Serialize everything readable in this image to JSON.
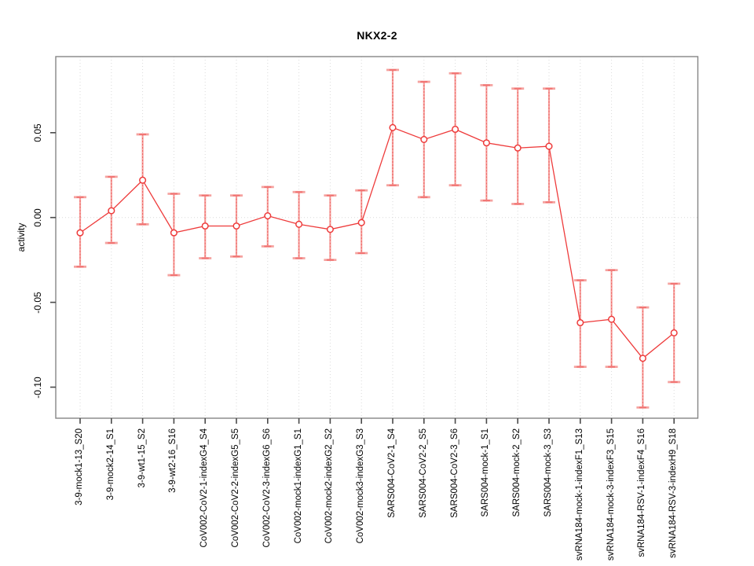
{
  "page": {
    "background": "#ffffff"
  },
  "chart_data": {
    "type": "line",
    "title": "NKX2-2",
    "xlabel": "",
    "ylabel": "activity",
    "ylim": [
      -0.118,
      0.095
    ],
    "yticks": [
      0.05,
      0.0,
      -0.05,
      -0.1
    ],
    "ytick_labels": [
      "0.05",
      "0.00",
      "-0.05",
      "-0.10"
    ],
    "grid": "vertical dashed gridline per category; dotted horizontal line at y=0",
    "legend": "none",
    "marker": "open-circle",
    "colors": {
      "point_line": "#ee3b3b",
      "error_bar": "#f5a3a0",
      "gridline": "#dadada",
      "axis_box": "#858585",
      "tick": "#4a4a4a"
    },
    "categories": [
      "3-9-mock1-13_S20",
      "3-9-mock2-14_S1",
      "3-9-wt1-15_S2",
      "3-9-wt2-16_S16",
      "CoV002-CoV2-1-indexG4_S4",
      "CoV002-CoV2-2-indexG5_S5",
      "CoV002-CoV2-3-indexG6_S6",
      "CoV002-mock1-indexG1_S1",
      "CoV002-mock2-indexG2_S2",
      "CoV002-mock3-indexG3_S3",
      "SARS004-CoV2-1_S4",
      "SARS004-CoV2-2_S5",
      "SARS004-CoV2-3_S6",
      "SARS004-mock-1_S1",
      "SARS004-mock-2_S2",
      "SARS004-mock-3_S3",
      "svRNA184-mock-1-indexF1_S13",
      "svRNA184-mock-3-indexF3_S15",
      "svRNA184-RSV-1-indexF4_S16",
      "svRNA184-RSV-3-indexH9_S18"
    ],
    "series": [
      {
        "name": "activity",
        "values": [
          -0.009,
          0.004,
          0.022,
          -0.009,
          -0.005,
          -0.005,
          0.001,
          -0.004,
          -0.007,
          -0.003,
          0.053,
          0.046,
          0.052,
          0.044,
          0.041,
          0.042,
          -0.062,
          -0.06,
          -0.083,
          -0.068
        ],
        "lower": [
          -0.029,
          -0.015,
          -0.004,
          -0.034,
          -0.024,
          -0.023,
          -0.017,
          -0.024,
          -0.025,
          -0.021,
          0.019,
          0.012,
          0.019,
          0.01,
          0.008,
          0.009,
          -0.088,
          -0.088,
          -0.112,
          -0.097
        ],
        "upper": [
          0.012,
          0.024,
          0.049,
          0.014,
          0.013,
          0.013,
          0.018,
          0.015,
          0.013,
          0.016,
          0.087,
          0.08,
          0.085,
          0.078,
          0.076,
          0.076,
          -0.037,
          -0.031,
          -0.053,
          -0.039
        ]
      }
    ]
  }
}
